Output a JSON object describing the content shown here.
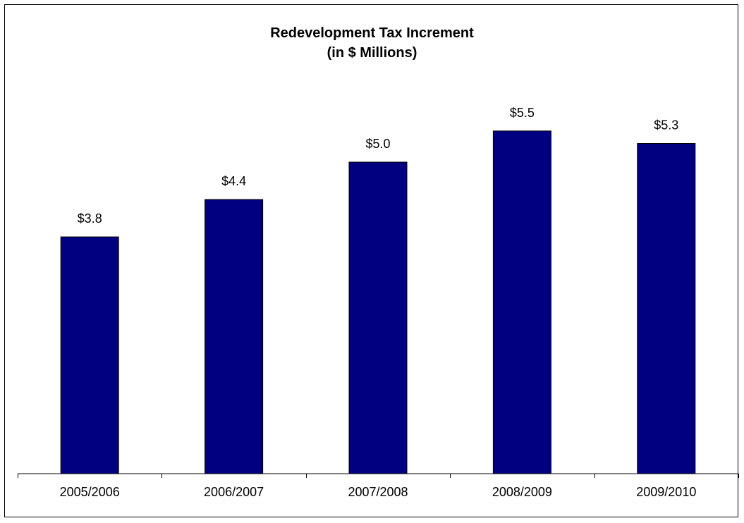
{
  "chart_data": {
    "type": "bar",
    "title": "Redevelopment Tax Increment",
    "subtitle": "(in $ Millions)",
    "categories": [
      "2005/2006",
      "2006/2007",
      "2007/2008",
      "2008/2009",
      "2009/2010"
    ],
    "values": [
      3.8,
      4.4,
      5.0,
      5.5,
      5.3
    ],
    "data_labels": [
      "$3.8",
      "$4.4",
      "$5.0",
      "$5.5",
      "$5.3"
    ],
    "ylim": [
      0,
      7.4
    ],
    "xlabel": "",
    "ylabel": "",
    "grid": false,
    "legend": "none",
    "colors": {
      "bar": "#000080",
      "bar_outline": "#000000",
      "axis": "#000000"
    }
  }
}
